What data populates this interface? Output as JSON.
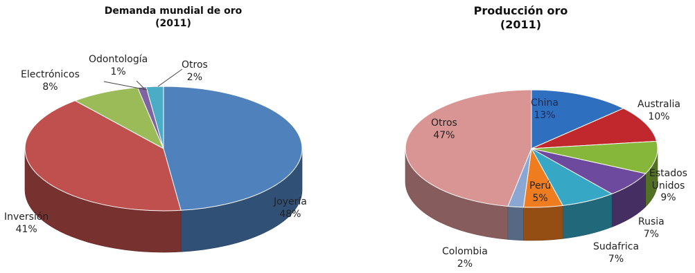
{
  "chart_data": [
    {
      "type": "pie",
      "title": [
        "Demanda mundial de oro",
        "(2011)"
      ],
      "slices": [
        {
          "label": "Joyería",
          "value": 48,
          "pct_label": "48%",
          "color": "#4f81bd"
        },
        {
          "label": "Inversión",
          "value": 41,
          "pct_label": "41%",
          "color": "#c0504d"
        },
        {
          "label": "Electrónicos",
          "value": 8,
          "pct_label": "8%",
          "color": "#9bbb59"
        },
        {
          "label": "Odontología",
          "value": 1,
          "pct_label": "1%",
          "color": "#8064a2"
        },
        {
          "label": "Otros",
          "value": 2,
          "pct_label": "2%",
          "color": "#4bacc6"
        }
      ]
    },
    {
      "type": "pie",
      "title": [
        "Producción oro",
        "(2011)"
      ],
      "slices": [
        {
          "label": "China",
          "value": 13,
          "pct_label": "13%",
          "color": "#2e6fc0"
        },
        {
          "label": "Australia",
          "value": 10,
          "pct_label": "10%",
          "color": "#c0282d"
        },
        {
          "label": "Estados Unidos",
          "value": 9,
          "pct_label": "9%",
          "color": "#86b63a"
        },
        {
          "label": "Rusia",
          "value": 7,
          "pct_label": "7%",
          "color": "#6e4a9e"
        },
        {
          "label": "Sudafrica",
          "value": 7,
          "pct_label": "7%",
          "color": "#36a7c4"
        },
        {
          "label": "Perú",
          "value": 5,
          "pct_label": "5%",
          "color": "#ef7d1f"
        },
        {
          "label": "Colombia",
          "value": 2,
          "pct_label": "2%",
          "color": "#8aa7d4"
        },
        {
          "label": "Otros",
          "value": 47,
          "pct_label": "47%",
          "color": "#d99594"
        }
      ]
    }
  ]
}
